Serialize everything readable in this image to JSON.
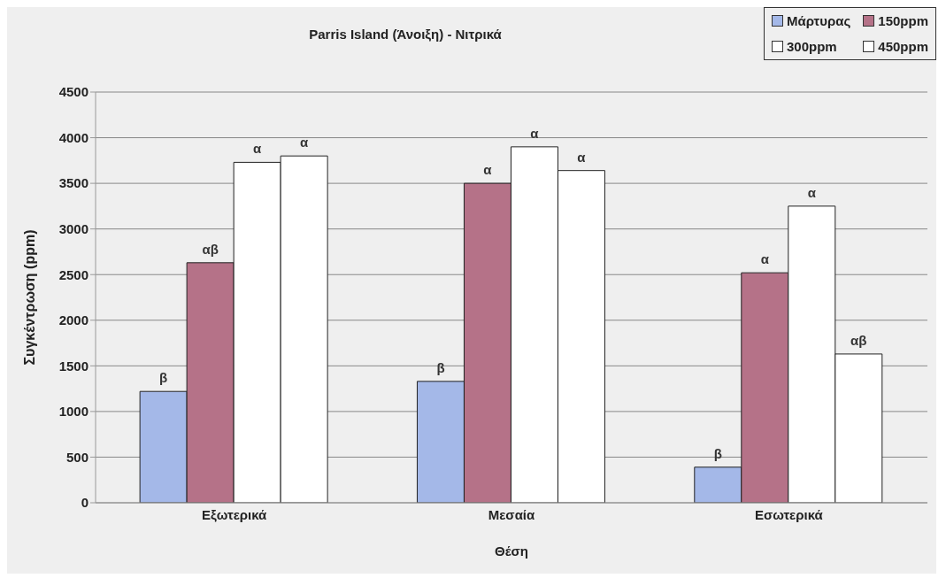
{
  "chart_data": {
    "type": "bar",
    "title": "Parris Island (Άνοιξη) - Νιτρικά",
    "xlabel": "Θέση",
    "ylabel": "Συγκέντρωση (ppm)",
    "categories": [
      "Εξωτερικά",
      "Μεσαία",
      "Εσωτερικά"
    ],
    "series": [
      {
        "name": "Μάρτυρας",
        "color": "#a4b8e8",
        "values": [
          1220,
          1330,
          390
        ],
        "value_labels": [
          "β",
          "β",
          "β"
        ]
      },
      {
        "name": "150ppm",
        "color": "#b57288",
        "values": [
          2630,
          3500,
          2520
        ],
        "value_labels": [
          "αβ",
          "α",
          "α"
        ]
      },
      {
        "name": "300ppm",
        "color": "#ffffff",
        "values": [
          3730,
          3900,
          3250
        ],
        "value_labels": [
          "α",
          "α",
          "α"
        ]
      },
      {
        "name": "450ppm",
        "color": "#ffffff",
        "values": [
          3800,
          3640,
          1630
        ],
        "value_labels": [
          "α",
          "α",
          "αβ"
        ]
      }
    ],
    "ylim": [
      0,
      4500
    ],
    "yticks": [
      0,
      500,
      1000,
      1500,
      2000,
      2500,
      3000,
      3500,
      4000,
      4500
    ],
    "grid": "y",
    "legend": "top right"
  }
}
